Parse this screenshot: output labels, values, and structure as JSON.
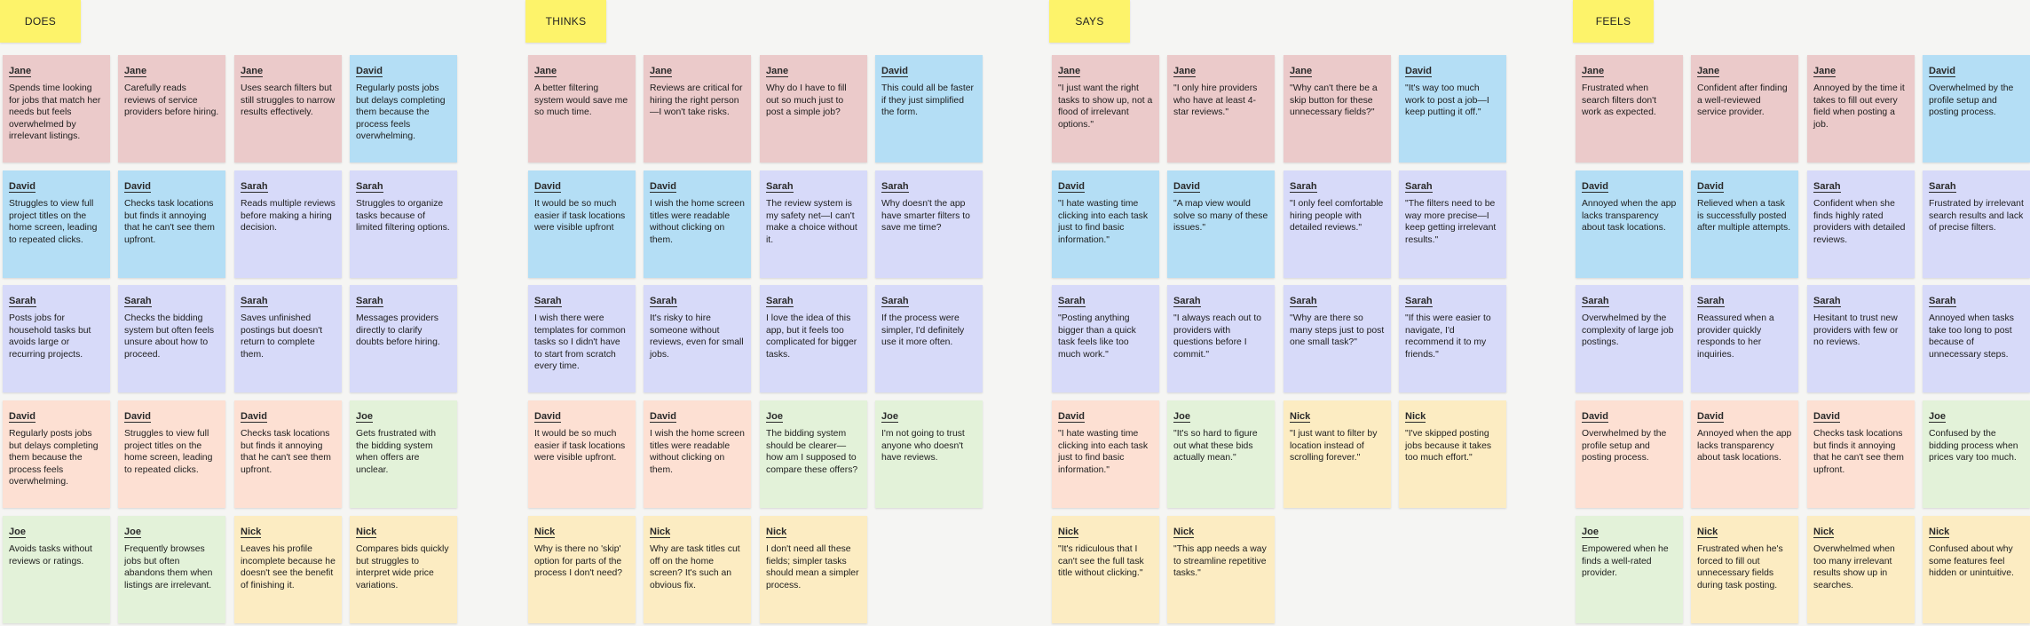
{
  "colors": {
    "pink": "#ebcaca",
    "blue": "#b4def5",
    "lavender": "#d7daf9",
    "peach": "#fde0d3",
    "green": "#e3f2d9",
    "yellow": "#fcecc2",
    "header": "#fdf36a",
    "canvas": "#f5f5f3"
  },
  "sections": [
    {
      "title": "DOES",
      "rows": [
        [
          {
            "name": "Jane",
            "text": "Spends time looking for jobs that match her needs but feels overwhelmed by irrelevant listings.",
            "color": "pink"
          },
          {
            "name": "Jane",
            "text": "Carefully reads reviews of service providers before hiring.",
            "color": "pink"
          },
          {
            "name": "Jane",
            "text": "Uses search filters but still struggles to narrow results effectively.",
            "color": "pink"
          },
          {
            "name": "David",
            "text": "Regularly posts jobs but delays completing them because the process feels overwhelming.",
            "color": "blue"
          }
        ],
        [
          {
            "name": "David",
            "text": "Struggles to view full project titles on the home screen, leading to repeated clicks.",
            "color": "blue"
          },
          {
            "name": "David",
            "text": "Checks task locations but finds it annoying that he can't see them upfront.",
            "color": "blue"
          },
          {
            "name": "Sarah",
            "text": "Reads multiple reviews before making a hiring decision.",
            "color": "lavender"
          },
          {
            "name": "Sarah",
            "text": "Struggles to organize tasks because of limited filtering options.",
            "color": "lavender"
          }
        ],
        [
          {
            "name": "Sarah",
            "text": "Posts jobs for household tasks but avoids large or recurring projects.",
            "color": "lavender"
          },
          {
            "name": "Sarah",
            "text": "Checks the bidding system but often feels unsure about how to proceed.",
            "color": "lavender"
          },
          {
            "name": "Sarah",
            "text": "Saves unfinished postings but doesn't return to complete them.",
            "color": "lavender"
          },
          {
            "name": "Sarah",
            "text": "Messages providers directly to clarify doubts before hiring.",
            "color": "lavender"
          }
        ],
        [
          {
            "name": "David",
            "text": "Regularly posts jobs but delays completing them because the process feels overwhelming.",
            "color": "peach"
          },
          {
            "name": "David",
            "text": "Struggles to view full project titles on the home screen, leading to repeated clicks.",
            "color": "peach"
          },
          {
            "name": "David",
            "text": "Checks task locations but finds it annoying that he can't see them upfront.",
            "color": "peach"
          },
          {
            "name": "Joe",
            "text": "Gets frustrated with the bidding system when offers are unclear.",
            "color": "green"
          }
        ],
        [
          {
            "name": "Joe",
            "text": "Avoids tasks without reviews or ratings.",
            "color": "green"
          },
          {
            "name": "Joe",
            "text": "Frequently browses jobs but often abandons them when listings are irrelevant.",
            "color": "green"
          },
          {
            "name": "Nick",
            "text": "Leaves his profile incomplete because he doesn't see the benefit of finishing it.",
            "color": "yellow"
          },
          {
            "name": "Nick",
            "text": "Compares bids quickly but struggles to interpret wide price variations.",
            "color": "yellow"
          }
        ]
      ]
    },
    {
      "title": "THINKS",
      "rows": [
        [
          {
            "name": "Jane",
            "text": "A better filtering system would save me so much time.",
            "color": "pink"
          },
          {
            "name": "Jane",
            "text": "Reviews are critical for hiring the right person—I won't take risks.",
            "color": "pink"
          },
          {
            "name": "Jane",
            "text": "Why do I have to fill out so much just to post a simple job?",
            "color": "pink"
          },
          {
            "name": "David",
            "text": "This could all be faster if they just simplified the form.",
            "color": "blue"
          }
        ],
        [
          {
            "name": "David",
            "text": "It would be so much easier if task locations were visible upfront",
            "color": "blue"
          },
          {
            "name": "David",
            "text": "I wish the home screen titles were readable without clicking on them.",
            "color": "blue"
          },
          {
            "name": "Sarah",
            "text": "The review system is my safety net—I can't make a choice without it.",
            "color": "lavender"
          },
          {
            "name": "Sarah",
            "text": "Why doesn't the app have smarter filters to save me time?",
            "color": "lavender"
          }
        ],
        [
          {
            "name": "Sarah",
            "text": "I wish there were templates for common tasks so I didn't have to start from scratch every time.",
            "color": "lavender"
          },
          {
            "name": "Sarah",
            "text": "It's risky to hire someone without reviews, even for small jobs.",
            "color": "lavender"
          },
          {
            "name": "Sarah",
            "text": "I love the idea of this app, but it feels too complicated for bigger tasks.",
            "color": "lavender"
          },
          {
            "name": "Sarah",
            "text": "If the process were simpler, I'd definitely use it more often.",
            "color": "lavender"
          }
        ],
        [
          {
            "name": "David",
            "text": "It would be so much easier if task locations were visible upfront.",
            "color": "peach"
          },
          {
            "name": "David",
            "text": "I wish the home screen titles were readable without clicking on them.",
            "color": "peach"
          },
          {
            "name": "Joe",
            "text": "The bidding system should be clearer—how am I supposed to compare these offers?",
            "color": "green"
          },
          {
            "name": "Joe",
            "text": "I'm not going to trust anyone who doesn't have reviews.",
            "color": "green"
          }
        ],
        [
          {
            "name": "Nick",
            "text": "Why is there no 'skip' option for parts of the process I don't need?",
            "color": "yellow"
          },
          {
            "name": "Nick",
            "text": "Why are task titles cut off on the home screen? It's such an obvious fix.",
            "color": "yellow"
          },
          {
            "name": "Nick",
            "text": "I don't need all these fields; simpler tasks should mean a simpler process.",
            "color": "yellow"
          }
        ]
      ]
    },
    {
      "title": "SAYS",
      "rows": [
        [
          {
            "name": "Jane",
            "text": "\"I just want the right tasks to show up, not a flood of irrelevant options.\"",
            "color": "pink"
          },
          {
            "name": "Jane",
            "text": "\"I only hire providers who have at least 4-star reviews.\"",
            "color": "pink"
          },
          {
            "name": "Jane",
            "text": "\"Why can't there be a skip button for these unnecessary fields?\"",
            "color": "pink"
          },
          {
            "name": "David",
            "text": "\"It's way too much work to post a job—I keep putting it off.\"",
            "color": "blue"
          }
        ],
        [
          {
            "name": "David",
            "text": "\"I hate wasting time clicking into each task just to find basic information.\"",
            "color": "blue"
          },
          {
            "name": "David",
            "text": "\"A map view would solve so many of these issues.\"",
            "color": "blue"
          },
          {
            "name": "Sarah",
            "text": "\"I only feel comfortable hiring people with detailed reviews.\"",
            "color": "lavender"
          },
          {
            "name": "Sarah",
            "text": "\"The filters need to be way more precise—I keep getting irrelevant results.\"",
            "color": "lavender"
          }
        ],
        [
          {
            "name": "Sarah",
            "text": "\"Posting anything bigger than a quick task feels like too much work.\"",
            "color": "lavender"
          },
          {
            "name": "Sarah",
            "text": "\"I always reach out to providers with questions before I commit.\"",
            "color": "lavender"
          },
          {
            "name": "Sarah",
            "text": "\"Why are there so many steps just to post one small task?\"",
            "color": "lavender"
          },
          {
            "name": "Sarah",
            "text": "\"If this were easier to navigate, I'd recommend it to my friends.\"",
            "color": "lavender"
          }
        ],
        [
          {
            "name": "David",
            "text": "\"I hate wasting time clicking into each task just to find basic information.\"",
            "color": "peach"
          },
          {
            "name": "Joe",
            "text": "\"It's so hard to figure out what these bids actually mean.\"",
            "color": "green"
          },
          {
            "name": "Nick",
            "text": "\"I just want to filter by location instead of scrolling forever.\"",
            "color": "yellow"
          },
          {
            "name": "Nick",
            "text": "\"I've skipped posting jobs because it takes too much effort.\"",
            "color": "yellow"
          }
        ],
        [
          {
            "name": "Nick",
            "text": "\"It's ridiculous that I can't see the full task title without clicking.\"",
            "color": "yellow"
          },
          {
            "name": "Nick",
            "text": "\"This app needs a way to streamline repetitive tasks.\"",
            "color": "yellow"
          }
        ]
      ]
    },
    {
      "title": "FEELS",
      "rows": [
        [
          {
            "name": "Jane",
            "text": "Frustrated when search filters don't work as expected.",
            "color": "pink"
          },
          {
            "name": "Jane",
            "text": "Confident after finding a well-reviewed service provider.",
            "color": "pink"
          },
          {
            "name": "Jane",
            "text": "Annoyed by the time it takes to fill out every field when posting a job.",
            "color": "pink"
          },
          {
            "name": "David",
            "text": "Overwhelmed by the profile setup and posting process.",
            "color": "blue"
          }
        ],
        [
          {
            "name": "David",
            "text": "Annoyed when the app lacks transparency about task locations.",
            "color": "blue"
          },
          {
            "name": "David",
            "text": "Relieved when a task is successfully posted after multiple attempts.",
            "color": "blue"
          },
          {
            "name": "Sarah",
            "text": "Confident when she finds highly rated providers with detailed reviews.",
            "color": "lavender"
          },
          {
            "name": "Sarah",
            "text": "Frustrated by irrelevant search results and lack of precise filters.",
            "color": "lavender"
          }
        ],
        [
          {
            "name": "Sarah",
            "text": "Overwhelmed by the complexity of large job postings.",
            "color": "lavender"
          },
          {
            "name": "Sarah",
            "text": "Reassured when a provider quickly responds to her inquiries.",
            "color": "lavender"
          },
          {
            "name": "Sarah",
            "text": "Hesitant to trust new providers with few or no reviews.",
            "color": "lavender"
          },
          {
            "name": "Sarah",
            "text": "Annoyed when tasks take too long to post because of unnecessary steps.",
            "color": "lavender"
          }
        ],
        [
          {
            "name": "David",
            "text": "Overwhelmed by the profile setup and posting process.",
            "color": "peach"
          },
          {
            "name": "David",
            "text": "Annoyed when the app lacks transparency about task locations.",
            "color": "peach"
          },
          {
            "name": "David",
            "text": "Checks task locations but finds it annoying that he can't see them upfront.",
            "color": "peach"
          },
          {
            "name": "Joe",
            "text": "Confused by the bidding process when prices vary too much.",
            "color": "green"
          }
        ],
        [
          {
            "name": "Joe",
            "text": "Empowered when he finds a well-rated provider.",
            "color": "green"
          },
          {
            "name": "Nick",
            "text": "Frustrated when he's forced to fill out unnecessary fields during task posting.",
            "color": "yellow"
          },
          {
            "name": "Nick",
            "text": "Overwhelmed when too many irrelevant results show up in searches.",
            "color": "yellow"
          },
          {
            "name": "Nick",
            "text": "Confused about why some features feel hidden or unintuitive.",
            "color": "yellow"
          }
        ]
      ]
    }
  ]
}
